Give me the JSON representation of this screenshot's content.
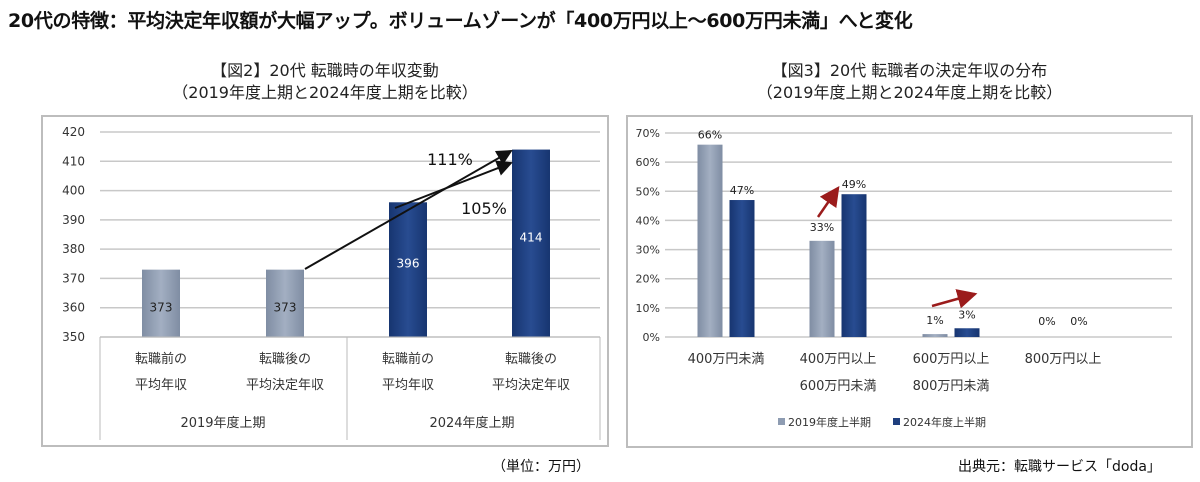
{
  "headline": "20代の特徴：平均決定年収額が大幅アップ。ボリュームゾーンが「400万円以上～600万円未満」へと変化",
  "unit_note": "（単位：万円）",
  "source": "出典元：転職サービス「doda」",
  "colors": {
    "gray_bar": "#8e9cb2",
    "navy_bar": "#1f3f7e",
    "arrow_dark": "#111111",
    "arrow_red": "#9b1c1c",
    "grid": "#c8c8c8"
  },
  "chart_data": [
    {
      "type": "bar",
      "title": "【図2】20代 転職時の年収変動",
      "subtitle": "（2019年度上期と2024年度上期を比較）",
      "ylim": [
        350,
        420
      ],
      "yticks": [
        "350",
        "360",
        "370",
        "380",
        "390",
        "400",
        "410",
        "420"
      ],
      "grid": true,
      "categories": [
        {
          "line1": "転職前の",
          "line2": "平均年収",
          "group": "2019年度上期"
        },
        {
          "line1": "転職後の",
          "line2": "平均決定年収",
          "group": "2019年度上期"
        },
        {
          "line1": "転職前の",
          "line2": "平均年収",
          "group": "2024年度上期"
        },
        {
          "line1": "転職後の",
          "line2": "平均決定年収",
          "group": "2024年度上期"
        }
      ],
      "groups": [
        "2019年度上期",
        "2024年度上期"
      ],
      "values": [
        373,
        373,
        396,
        414
      ],
      "value_labels": [
        "373",
        "373",
        "396",
        "414"
      ],
      "annotations": [
        {
          "text": "111%",
          "from_category": 1,
          "to_category": 3
        },
        {
          "text": "105%",
          "from_category": 2,
          "to_category": 3
        }
      ]
    },
    {
      "type": "bar",
      "title": "【図3】20代 転職者の決定年収の分布",
      "subtitle": "（2019年度上期と2024年度上期を比較）",
      "ylim": [
        0,
        70
      ],
      "yticks": [
        "0%",
        "10%",
        "20%",
        "30%",
        "40%",
        "50%",
        "60%",
        "70%"
      ],
      "grid": true,
      "legend_position": "bottom",
      "categories": [
        {
          "line1": "400万円未満",
          "line2": ""
        },
        {
          "line1": "400万円以上",
          "line2": "600万円未満"
        },
        {
          "line1": "600万円以上",
          "line2": "800万円未満"
        },
        {
          "line1": "800万円以上",
          "line2": ""
        }
      ],
      "series": [
        {
          "name": "2019年度上半期",
          "values": [
            66,
            33,
            1,
            0
          ],
          "labels": [
            "66%",
            "33%",
            "1%",
            "0%"
          ]
        },
        {
          "name": "2024年度上半期",
          "values": [
            47,
            49,
            3,
            0
          ],
          "labels": [
            "47%",
            "49%",
            "3%",
            "0%"
          ]
        }
      ],
      "annotations": [
        {
          "type": "red-arrow",
          "category": 1
        },
        {
          "type": "red-arrow",
          "category": 2
        }
      ]
    }
  ]
}
